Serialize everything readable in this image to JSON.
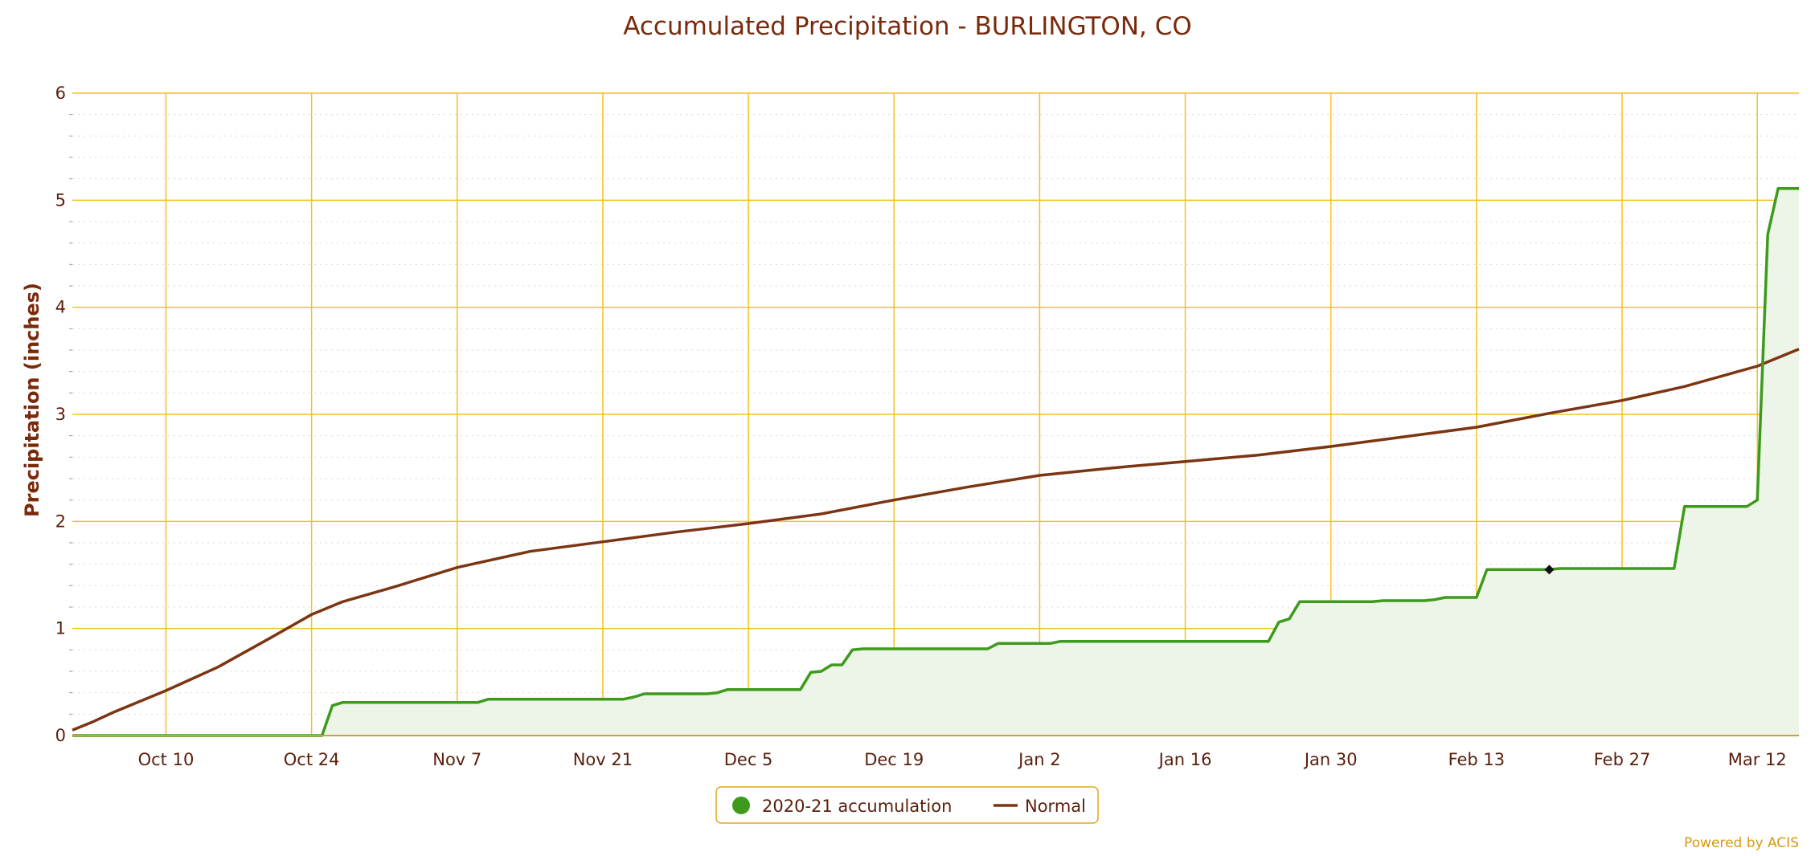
{
  "chart_data": {
    "type": "line",
    "title": "Accumulated Precipitation - BURLINGTON, CO",
    "ylabel": "Precipitation (inches)",
    "xlabel": "",
    "x_range": [
      "2020-10-01",
      "2021-03-16"
    ],
    "ylim": [
      0,
      6
    ],
    "y_ticks": [
      0,
      1,
      2,
      3,
      4,
      5,
      6
    ],
    "x_ticks": [
      {
        "date": "2020-10-10",
        "label": "Oct 10"
      },
      {
        "date": "2020-10-24",
        "label": "Oct 24"
      },
      {
        "date": "2020-11-07",
        "label": "Nov 7"
      },
      {
        "date": "2020-11-21",
        "label": "Nov 21"
      },
      {
        "date": "2020-12-05",
        "label": "Dec 5"
      },
      {
        "date": "2020-12-19",
        "label": "Dec 19"
      },
      {
        "date": "2021-01-02",
        "label": "Jan 2"
      },
      {
        "date": "2021-01-16",
        "label": "Jan 16"
      },
      {
        "date": "2021-01-30",
        "label": "Jan 30"
      },
      {
        "date": "2021-02-13",
        "label": "Feb 13"
      },
      {
        "date": "2021-02-27",
        "label": "Feb 27"
      },
      {
        "date": "2021-03-12",
        "label": "Mar 12"
      }
    ],
    "grid": true,
    "legend_position": "bottom-center",
    "series": [
      {
        "name": "2020-21 accumulation",
        "color": "#3d9a1c",
        "fill": "#ecf5e7",
        "points": [
          [
            "2020-10-01",
            0.0
          ],
          [
            "2020-10-25",
            0.0
          ],
          [
            "2020-10-26",
            0.28
          ],
          [
            "2020-10-27",
            0.31
          ],
          [
            "2020-11-09",
            0.31
          ],
          [
            "2020-11-10",
            0.34
          ],
          [
            "2020-11-23",
            0.34
          ],
          [
            "2020-11-24",
            0.36
          ],
          [
            "2020-11-25",
            0.39
          ],
          [
            "2020-12-01",
            0.39
          ],
          [
            "2020-12-02",
            0.4
          ],
          [
            "2020-12-03",
            0.43
          ],
          [
            "2020-12-10",
            0.43
          ],
          [
            "2020-12-11",
            0.59
          ],
          [
            "2020-12-12",
            0.6
          ],
          [
            "2020-12-13",
            0.66
          ],
          [
            "2020-12-14",
            0.66
          ],
          [
            "2020-12-15",
            0.8
          ],
          [
            "2020-12-16",
            0.81
          ],
          [
            "2020-12-28",
            0.81
          ],
          [
            "2020-12-29",
            0.86
          ],
          [
            "2021-01-03",
            0.86
          ],
          [
            "2021-01-04",
            0.88
          ],
          [
            "2021-01-24",
            0.88
          ],
          [
            "2021-01-25",
            1.06
          ],
          [
            "2021-01-26",
            1.09
          ],
          [
            "2021-01-27",
            1.25
          ],
          [
            "2021-02-03",
            1.25
          ],
          [
            "2021-02-04",
            1.26
          ],
          [
            "2021-02-08",
            1.26
          ],
          [
            "2021-02-09",
            1.27
          ],
          [
            "2021-02-10",
            1.29
          ],
          [
            "2021-02-13",
            1.29
          ],
          [
            "2021-02-14",
            1.55
          ],
          [
            "2021-02-20",
            1.55
          ],
          [
            "2021-02-21",
            1.56
          ],
          [
            "2021-03-04",
            1.56
          ],
          [
            "2021-03-05",
            2.14
          ],
          [
            "2021-03-11",
            2.14
          ],
          [
            "2021-03-12",
            2.2
          ],
          [
            "2021-03-13",
            4.68
          ],
          [
            "2021-03-14",
            5.11
          ],
          [
            "2021-03-16",
            5.11
          ]
        ],
        "marker": [
          "2021-02-20",
          1.55
        ]
      },
      {
        "name": "Normal",
        "color": "#7c3512",
        "points": [
          [
            "2020-10-01",
            0.05
          ],
          [
            "2020-10-03",
            0.13
          ],
          [
            "2020-10-05",
            0.22
          ],
          [
            "2020-10-10",
            0.42
          ],
          [
            "2020-10-15",
            0.64
          ],
          [
            "2020-10-20",
            0.91
          ],
          [
            "2020-10-24",
            1.13
          ],
          [
            "2020-10-27",
            1.25
          ],
          [
            "2020-11-01",
            1.39
          ],
          [
            "2020-11-07",
            1.57
          ],
          [
            "2020-11-14",
            1.72
          ],
          [
            "2020-11-21",
            1.81
          ],
          [
            "2020-11-28",
            1.9
          ],
          [
            "2020-12-05",
            1.98
          ],
          [
            "2020-12-12",
            2.07
          ],
          [
            "2020-12-19",
            2.2
          ],
          [
            "2020-12-26",
            2.32
          ],
          [
            "2021-01-02",
            2.43
          ],
          [
            "2021-01-09",
            2.5
          ],
          [
            "2021-01-16",
            2.56
          ],
          [
            "2021-01-23",
            2.62
          ],
          [
            "2021-01-30",
            2.7
          ],
          [
            "2021-02-06",
            2.79
          ],
          [
            "2021-02-13",
            2.88
          ],
          [
            "2021-02-20",
            3.01
          ],
          [
            "2021-02-27",
            3.13
          ],
          [
            "2021-03-05",
            3.26
          ],
          [
            "2021-03-12",
            3.45
          ],
          [
            "2021-03-16",
            3.61
          ]
        ]
      }
    ]
  },
  "legend": {
    "items": [
      {
        "label": "2020-21 accumulation",
        "color": "#3d9a1c",
        "symbol": "circle"
      },
      {
        "label": "Normal",
        "color": "#7c3512",
        "symbol": "line"
      }
    ]
  },
  "credit": "Powered by ACIS",
  "colors": {
    "grid": "#f2c21e",
    "axis": "#c9a03a",
    "text": "#5a1e0a",
    "title": "#7a2a0c",
    "credit": "#d49a12"
  }
}
